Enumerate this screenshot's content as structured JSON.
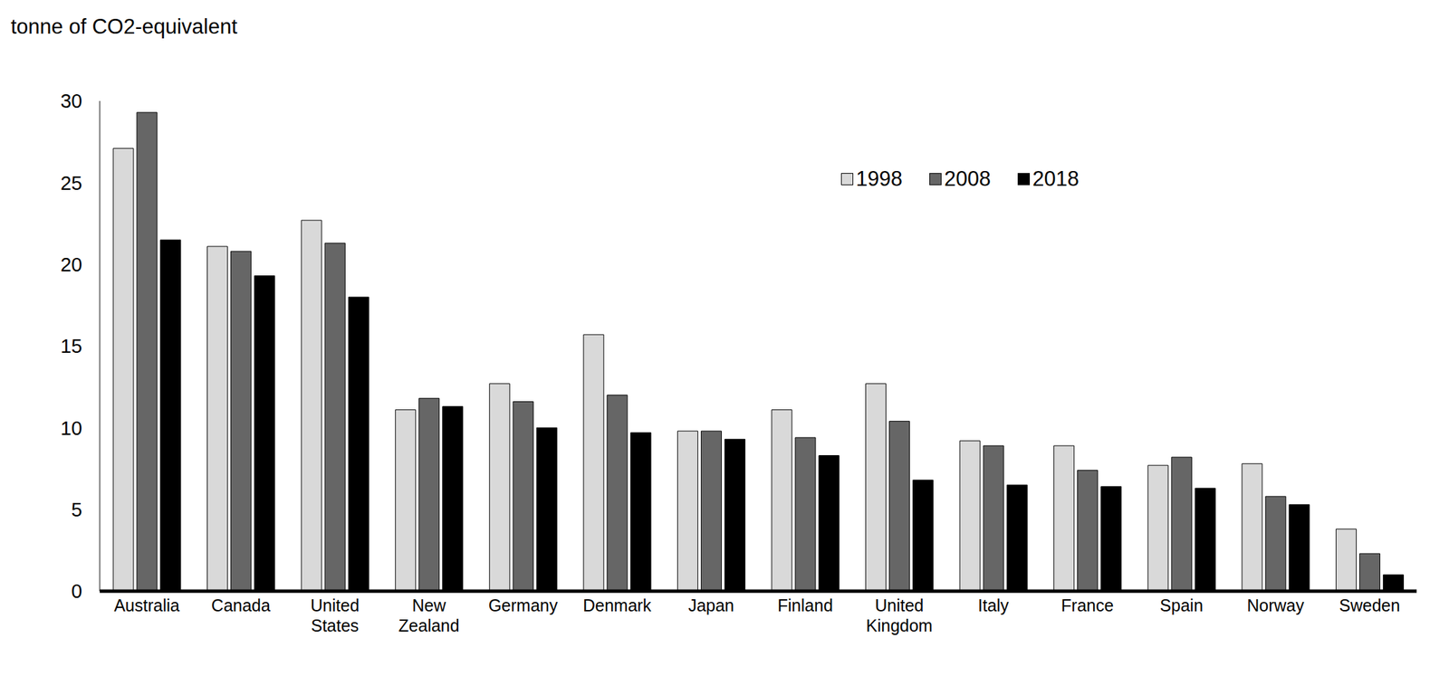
{
  "chart_data": {
    "type": "bar",
    "y_label": "tonne of CO2-equivalent",
    "categories": [
      "Australia",
      "Canada",
      "United States",
      "New Zealand",
      "Germany",
      "Denmark",
      "Japan",
      "Finland",
      "United Kingdom",
      "Italy",
      "France",
      "Spain",
      "Norway",
      "Sweden"
    ],
    "series": [
      {
        "name": "1998",
        "color": "#d9d9d9",
        "values": [
          27.1,
          21.1,
          22.7,
          11.1,
          12.7,
          15.7,
          9.8,
          11.1,
          12.7,
          9.2,
          8.9,
          7.7,
          7.8,
          3.8
        ]
      },
      {
        "name": "2008",
        "color": "#666666",
        "values": [
          29.3,
          20.8,
          21.3,
          11.8,
          11.6,
          12.0,
          9.8,
          9.4,
          10.4,
          8.9,
          7.4,
          8.2,
          5.8,
          2.3
        ]
      },
      {
        "name": "2018",
        "color": "#000000",
        "values": [
          21.5,
          19.3,
          18.0,
          11.3,
          10.0,
          9.7,
          9.3,
          8.3,
          6.8,
          6.5,
          6.4,
          6.3,
          5.3,
          1.0
        ]
      }
    ],
    "ylim": [
      0,
      30
    ],
    "yticks": [
      0,
      5,
      10,
      15,
      20,
      25,
      30
    ],
    "grid": false,
    "legend": "top-right"
  }
}
